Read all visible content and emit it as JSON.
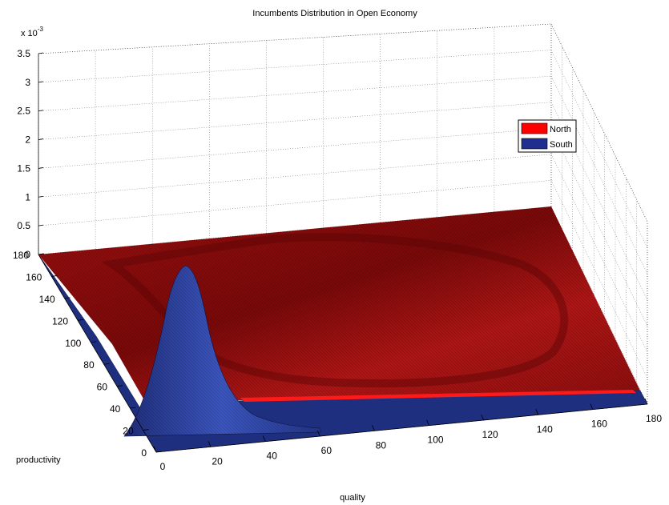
{
  "chart_data": {
    "type": "surface",
    "title": "Incumbents Distribution in Open Economy",
    "xlabel": "quality",
    "ylabel": "productivity",
    "zlabel": "",
    "z_exponent_label": "x 10",
    "z_exponent_power": "-3",
    "xlim": [
      0,
      180
    ],
    "ylim": [
      0,
      180
    ],
    "zlim": [
      0,
      3.5
    ],
    "xticks": [
      "0",
      "20",
      "40",
      "60",
      "80",
      "100",
      "120",
      "140",
      "160",
      "180"
    ],
    "yticks": [
      "0",
      "20",
      "40",
      "60",
      "80",
      "100",
      "120",
      "140",
      "160",
      "180"
    ],
    "zticks": [
      "0",
      "0.5",
      "1",
      "1.5",
      "2",
      "2.5",
      "3",
      "3.5"
    ],
    "grid": true,
    "legend_position": "right",
    "series": [
      {
        "name": "North",
        "color": "#ff0000",
        "shape": "near-flat surface close to zero",
        "peak": {
          "quality": 25,
          "productivity": 40,
          "value": 0.0001
        }
      },
      {
        "name": "South",
        "color": "#1f2f8f",
        "shape": "single sharp peak",
        "peak": {
          "quality": 20,
          "productivity": 45,
          "value": 0.0029
        }
      }
    ]
  }
}
